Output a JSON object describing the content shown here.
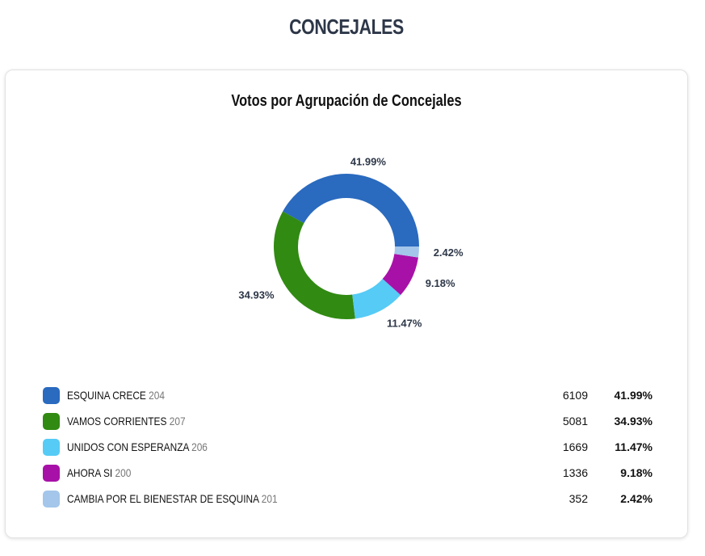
{
  "header": {
    "title": "CONCEJALES"
  },
  "chart_data": {
    "type": "pie",
    "donut": true,
    "title": "Votos por Agrupación de Concejales",
    "legend_position": "bottom",
    "series": [
      {
        "name": "ESQUINA CRECE",
        "code": "204",
        "votes": "6109",
        "percent_label": "41.99%",
        "value": 41.99,
        "color": "#2a6abf"
      },
      {
        "name": "VAMOS CORRIENTES",
        "code": "207",
        "votes": "5081",
        "percent_label": "34.93%",
        "value": 34.93,
        "color": "#318a12"
      },
      {
        "name": "UNIDOS CON ESPERANZA",
        "code": "206",
        "votes": "1669",
        "percent_label": "11.47%",
        "value": 11.47,
        "color": "#55cbf5"
      },
      {
        "name": "AHORA SI",
        "code": "200",
        "votes": "1336",
        "percent_label": "9.18%",
        "value": 9.18,
        "color": "#a811a8"
      },
      {
        "name": "CAMBIA POR EL BIENESTAR DE ESQUINA",
        "code": "201",
        "votes": "352",
        "percent_label": "2.42%",
        "value": 2.42,
        "color": "#a3c6ea"
      }
    ]
  }
}
